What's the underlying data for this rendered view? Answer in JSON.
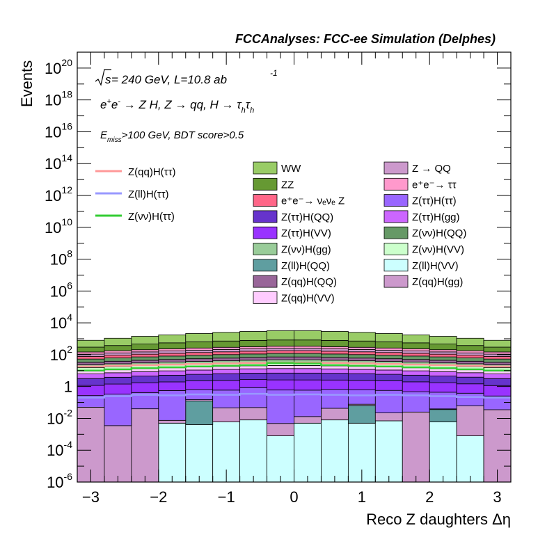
{
  "header": {
    "title": "FCCAnalyses: FCC-ee Simulation (Delphes)",
    "energy_sqrt": "s",
    "energy_rest": " = 240 GeV, L=10.8 ab",
    "lumi_exp": "-1",
    "process": {
      "e": "e",
      "plus": "+",
      "e2": "e",
      "minus": "-",
      "arrow1": " → Z H, Z  → qq, H  → ",
      "tau1": "τ",
      "h1": "h",
      "tau2": "τ",
      "h2": "h"
    },
    "selection": {
      "E": "E",
      "miss": "miss",
      "rest": ">100 GeV, BDT score>0.5"
    }
  },
  "chart_data": {
    "type": "bar",
    "stacked": true,
    "log_y": true,
    "xlabel": "Reco Z daughters Δη",
    "ylabel": "Events",
    "xlim": [
      -3.2,
      3.2
    ],
    "ylim": [
      1e-06,
      1e+21
    ],
    "bins": [
      -3.2,
      -2.8,
      -2.4,
      -2.0,
      -1.6,
      -1.2,
      -0.8,
      -0.4,
      0.0,
      0.4,
      0.8,
      1.2,
      1.6,
      2.0,
      2.4,
      2.8,
      3.2
    ],
    "xticks": [
      {
        "v": -3,
        "label": "−3"
      },
      {
        "v": -2,
        "label": "−2"
      },
      {
        "v": -1,
        "label": "−1"
      },
      {
        "v": 0,
        "label": "0"
      },
      {
        "v": 1,
        "label": "1"
      },
      {
        "v": 2,
        "label": "2"
      },
      {
        "v": 3,
        "label": "3"
      }
    ],
    "yticks": [
      {
        "v": 1e-06,
        "base": "10",
        "exp": "-6"
      },
      {
        "v": 0.0001,
        "base": "10",
        "exp": "-4"
      },
      {
        "v": 0.01,
        "base": "10",
        "exp": "-2"
      },
      {
        "v": 1,
        "base": "1",
        "exp": ""
      },
      {
        "v": 100.0,
        "base": "10",
        "exp": "2"
      },
      {
        "v": 10000.0,
        "base": "10",
        "exp": "4"
      },
      {
        "v": 1000000.0,
        "base": "10",
        "exp": "6"
      },
      {
        "v": 100000000.0,
        "base": "10",
        "exp": "8"
      },
      {
        "v": 10000000000.0,
        "base": "10",
        "exp": "10"
      },
      {
        "v": 1000000000000.0,
        "base": "10",
        "exp": "12"
      },
      {
        "v": 100000000000000.0,
        "base": "10",
        "exp": "14"
      },
      {
        "v": 1e+16,
        "base": "10",
        "exp": "16"
      },
      {
        "v": 1e+18,
        "base": "10",
        "exp": "18"
      },
      {
        "v": 1e+20,
        "base": "10",
        "exp": "20"
      }
    ],
    "stack_series": [
      {
        "name": "Z(ll)H(VV)",
        "color": "#ccffff",
        "values": [
          1e-06,
          1e-06,
          1e-06,
          0.005,
          0.004,
          0.006,
          0.008,
          0.0008,
          0.005,
          0.008,
          0.005,
          0.007,
          1e-06,
          0.006,
          0.0008,
          1e-06
        ]
      },
      {
        "name": "Z(ll)H(QQ)",
        "color": "#5f9ea0",
        "values": [
          0,
          0,
          0,
          0,
          0.12,
          0,
          0,
          0,
          0,
          0,
          0.06,
          0,
          0,
          0.03,
          0,
          0
        ]
      },
      {
        "name": "Z(qq)H(gg)",
        "color": "#cc99cc",
        "values": [
          0.05,
          0.0035,
          0.04,
          0.0025,
          0.025,
          0.04,
          0.04,
          0.004,
          0.008,
          0.035,
          0.012,
          0.015,
          0.025,
          0.0035,
          0.06,
          0.035
        ]
      },
      {
        "name": "Z(ττ)H(ττ)",
        "color": "#9966ff",
        "values": [
          0.22,
          0.33,
          0.38,
          0.55,
          0.5,
          0.55,
          0.8,
          0.6,
          0.58,
          0.62,
          0.55,
          0.55,
          0.45,
          0.4,
          0.32,
          0.22
        ]
      },
      {
        "name": "Z(ττ)H(VV)",
        "color": "#9933ff",
        "values": [
          0.9,
          1.1,
          1.3,
          1.4,
          1.6,
          1.8,
          1.9,
          2.0,
          2.0,
          1.9,
          1.8,
          1.7,
          1.5,
          1.3,
          1.1,
          0.9
        ]
      },
      {
        "name": "Z(ττ)H(QQ)",
        "color": "#6633cc",
        "values": [
          2,
          2.4,
          2.8,
          3.2,
          3.6,
          4,
          4.2,
          4.4,
          4.4,
          4.2,
          4,
          3.6,
          3.2,
          2.8,
          2.4,
          2
        ]
      },
      {
        "name": "Z(ττ)H(gg)",
        "color": "#cc66ff",
        "values": [
          3,
          3.5,
          4,
          4.5,
          5,
          5.5,
          6,
          6.5,
          6.5,
          6,
          5.5,
          5,
          4.5,
          4,
          3.5,
          3
        ]
      },
      {
        "name": "Z(qq)H(VV)",
        "color": "#ffccff",
        "values": [
          4,
          4.5,
          5,
          5.5,
          6,
          6.5,
          7,
          7.5,
          7.5,
          7,
          6.5,
          6,
          5.5,
          5,
          4.5,
          4
        ]
      },
      {
        "name": "Z(νν)H(VV)",
        "color": "#ccffcc",
        "values": [
          5,
          6,
          7,
          8,
          9,
          10,
          11,
          12,
          12,
          11,
          10,
          9,
          8,
          7,
          6,
          5
        ]
      },
      {
        "name": "Z(νν)H(gg)",
        "color": "#99cc99",
        "values": [
          8,
          9,
          10,
          11,
          12,
          13,
          14,
          15,
          15,
          14,
          13,
          12,
          11,
          10,
          9,
          8
        ]
      },
      {
        "name": "Z(qq)H(QQ)",
        "color": "#996699",
        "values": [
          10,
          12,
          14,
          16,
          18,
          20,
          22,
          24,
          24,
          22,
          20,
          18,
          16,
          14,
          12,
          10
        ]
      },
      {
        "name": "Z(νν)H(QQ)",
        "color": "#669966",
        "values": [
          20,
          24,
          28,
          32,
          36,
          40,
          44,
          48,
          48,
          44,
          40,
          36,
          32,
          28,
          24,
          20
        ]
      },
      {
        "name": "e⁺e⁻→ νₑνₑ Z",
        "color": "#ff6688",
        "values": [
          25,
          30,
          35,
          40,
          45,
          50,
          55,
          60,
          60,
          55,
          50,
          45,
          40,
          35,
          30,
          25
        ]
      },
      {
        "name": "Z → QQ",
        "color": "#cc99cc",
        "values": [
          30,
          36,
          42,
          48,
          54,
          60,
          66,
          70,
          70,
          66,
          60,
          54,
          48,
          42,
          36,
          30
        ]
      },
      {
        "name": "e⁺e⁻→ ττ",
        "color": "#ff99cc",
        "values": [
          40,
          48,
          56,
          64,
          72,
          80,
          86,
          90,
          90,
          86,
          80,
          72,
          64,
          56,
          48,
          40
        ]
      },
      {
        "name": "ZZ",
        "color": "#669933",
        "values": [
          150,
          200,
          260,
          320,
          380,
          430,
          470,
          500,
          500,
          470,
          430,
          380,
          320,
          260,
          200,
          150
        ]
      },
      {
        "name": "WW",
        "color": "#99cc66",
        "values": [
          500,
          700,
          950,
          1200,
          1500,
          1800,
          2100,
          2400,
          2400,
          2100,
          1800,
          1500,
          1200,
          950,
          700,
          500
        ]
      }
    ],
    "line_series": [
      {
        "name": "Z(qq)H(ττ)",
        "color": "#ff9999",
        "values": [
          18,
          20,
          22,
          24,
          26,
          28,
          30,
          32,
          32,
          30,
          28,
          26,
          24,
          22,
          20,
          18
        ]
      },
      {
        "name": "Z(ll)H(ττ)",
        "color": "#9999ff",
        "values": [
          0.2,
          0.25,
          0.3,
          0.28,
          0.32,
          0.3,
          0.35,
          0.3,
          0.32,
          0.3,
          0.28,
          0.3,
          0.28,
          0.25,
          0.22,
          0.2
        ]
      },
      {
        "name": "Z(νν)H(ττ)",
        "color": "#33cc33",
        "values": [
          10,
          12,
          14,
          16,
          18,
          20,
          22,
          30,
          28,
          22,
          20,
          18,
          16,
          14,
          12,
          10
        ]
      }
    ],
    "legend_columns": [
      [
        "WW",
        "ZZ",
        "e⁺e⁻→ νₑνₑ Z",
        "Z(ττ)H(QQ)",
        "Z(ττ)H(VV)",
        "Z(νν)H(gg)",
        "Z(ll)H(QQ)",
        "Z(qq)H(QQ)",
        "Z(qq)H(VV)"
      ],
      [
        "Z → QQ",
        "e⁺e⁻→ ττ",
        "Z(ττ)H(ττ)",
        "Z(ττ)H(gg)",
        "Z(νν)H(QQ)",
        "Z(νν)H(VV)",
        "Z(ll)H(VV)",
        "Z(qq)H(gg)"
      ]
    ]
  }
}
